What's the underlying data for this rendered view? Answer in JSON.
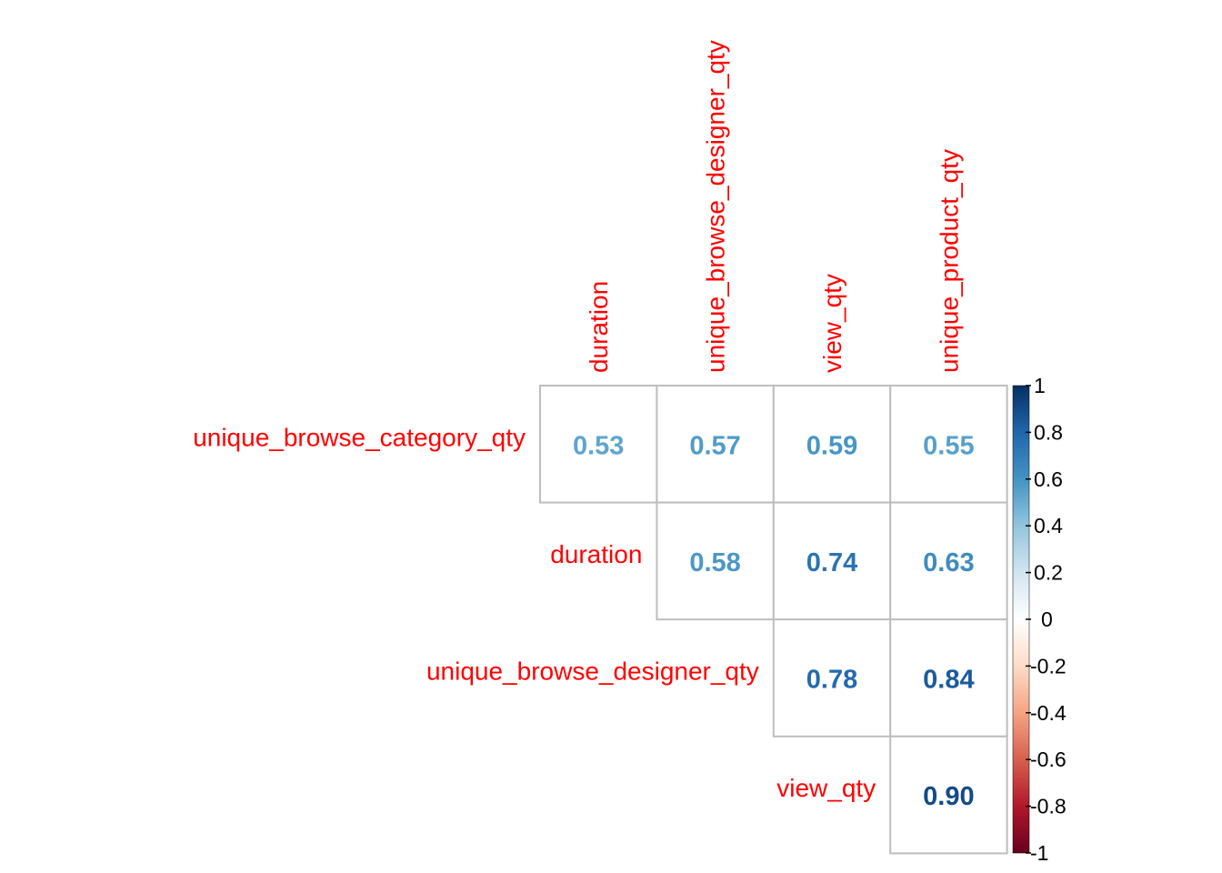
{
  "chart_data": {
    "type": "heatmap",
    "subtype": "correlation-upper-triangle",
    "row_labels": [
      "unique_browse_category_qty",
      "duration",
      "unique_browse_designer_qty",
      "view_qty"
    ],
    "col_labels": [
      "duration",
      "unique_browse_designer_qty",
      "view_qty",
      "unique_product_qty"
    ],
    "cells": [
      {
        "row": 0,
        "col": 0,
        "value": 0.53,
        "text": "0.53"
      },
      {
        "row": 0,
        "col": 1,
        "value": 0.57,
        "text": "0.57"
      },
      {
        "row": 0,
        "col": 2,
        "value": 0.59,
        "text": "0.59"
      },
      {
        "row": 0,
        "col": 3,
        "value": 0.55,
        "text": "0.55"
      },
      {
        "row": 1,
        "col": 1,
        "value": 0.58,
        "text": "0.58"
      },
      {
        "row": 1,
        "col": 2,
        "value": 0.74,
        "text": "0.74"
      },
      {
        "row": 1,
        "col": 3,
        "value": 0.63,
        "text": "0.63"
      },
      {
        "row": 2,
        "col": 2,
        "value": 0.78,
        "text": "0.78"
      },
      {
        "row": 2,
        "col": 3,
        "value": 0.84,
        "text": "0.84"
      },
      {
        "row": 3,
        "col": 3,
        "value": 0.9,
        "text": "0.90"
      }
    ],
    "colorbar": {
      "range": [
        -1,
        1
      ],
      "ticks": [
        "1",
        "0.8",
        "0.6",
        "0.4",
        "0.2",
        "0",
        "-0.2",
        "-0.4",
        "-0.6",
        "-0.8",
        "-1"
      ],
      "tick_values": [
        1,
        0.8,
        0.6,
        0.4,
        0.2,
        0,
        -0.2,
        -0.4,
        -0.6,
        -0.8,
        -1
      ]
    },
    "label_color": "#FF0000",
    "grid_color": "#BEBEBE",
    "palette": [
      "#67001F",
      "#B2182B",
      "#D6604D",
      "#F4A582",
      "#FDDBC7",
      "#FFFFFF",
      "#D1E5F0",
      "#92C5DE",
      "#4393C3",
      "#2166AC",
      "#053061"
    ]
  }
}
